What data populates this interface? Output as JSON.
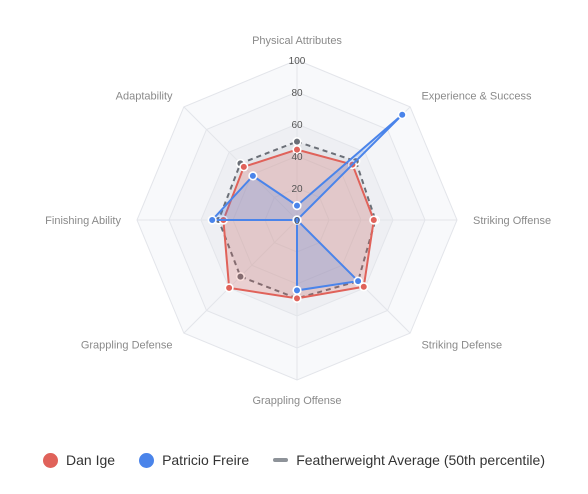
{
  "chart_data": {
    "type": "radar",
    "axes": [
      "Physical Attributes",
      "Experience & Success",
      "Striking Offense",
      "Striking Defense",
      "Grappling Offense",
      "Grappling Defense",
      "Finishing Ability",
      "Adaptability"
    ],
    "rlim": [
      0,
      100
    ],
    "ticks": [
      "0",
      "20",
      "40",
      "60",
      "80",
      "100"
    ],
    "series": [
      {
        "name": "Dan Ige",
        "color": "#e0625a",
        "values": [
          44,
          49,
          48,
          59,
          49,
          60,
          46,
          47
        ]
      },
      {
        "name": "Patricio Freire",
        "color": "#4a84ea",
        "values": [
          9,
          93,
          0,
          54,
          44,
          0,
          53,
          39
        ]
      },
      {
        "name": "Featherweight Average (50th percentile)",
        "color": "#6b6f77",
        "dashed": true,
        "values": [
          49,
          52,
          49,
          54,
          49,
          50,
          49,
          50
        ]
      }
    ],
    "legend_position": "bottom"
  }
}
